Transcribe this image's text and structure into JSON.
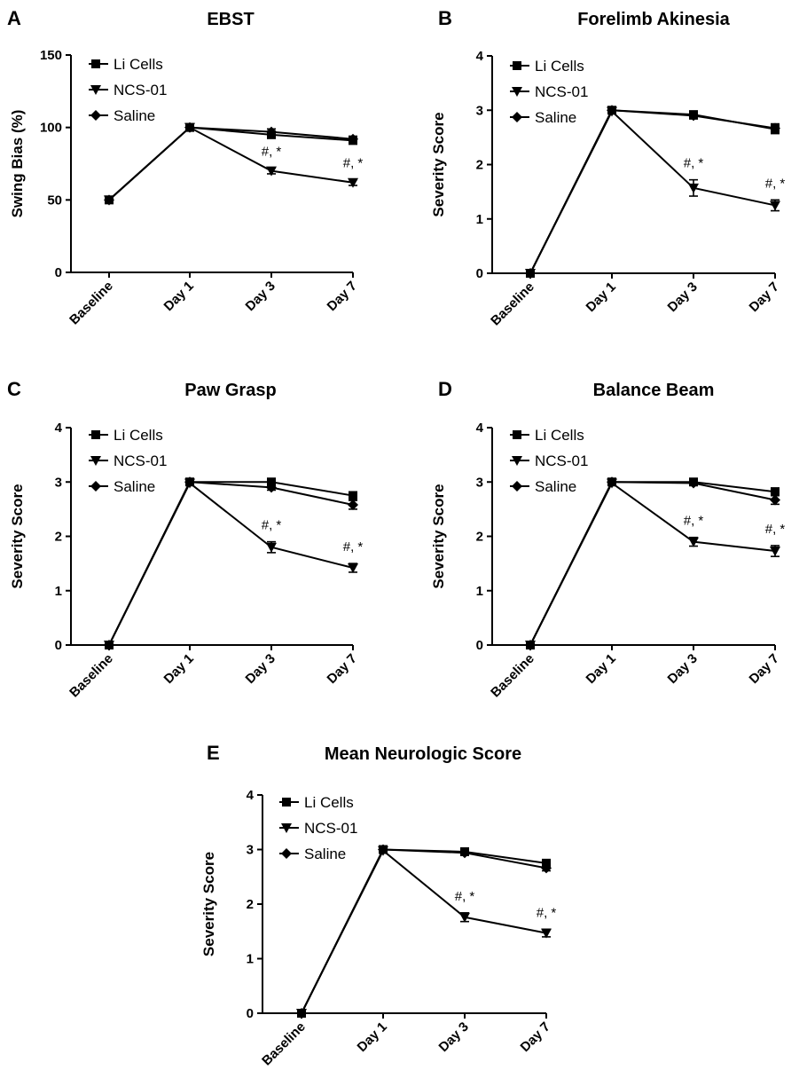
{
  "chart_data": [
    {
      "panel": "A",
      "type": "line",
      "title": "EBST",
      "xlabel": "",
      "ylabel": "Swing Bias (%)",
      "ylim": [
        0,
        150
      ],
      "yticks": [
        0,
        50,
        100,
        150
      ],
      "categories": [
        "Baseline",
        "Day 1",
        "Day 3",
        "Day 7"
      ],
      "legend_position": "top-left",
      "grid": false,
      "series": [
        {
          "name": "Li Cells",
          "marker": "square",
          "values": [
            50,
            100,
            95,
            91
          ],
          "errors": [
            1,
            1,
            2,
            2
          ]
        },
        {
          "name": "NCS-01",
          "marker": "triangle-down",
          "values": [
            50,
            100,
            70,
            62
          ],
          "errors": [
            1,
            1,
            2,
            2
          ]
        },
        {
          "name": "Saline",
          "marker": "diamond",
          "values": [
            50,
            100,
            97,
            92
          ],
          "errors": [
            1,
            1,
            2,
            2
          ]
        }
      ],
      "annotations": [
        {
          "text": "#, *",
          "category": "Day 3"
        },
        {
          "text": "#, *",
          "category": "Day 7"
        }
      ]
    },
    {
      "panel": "B",
      "type": "line",
      "title": "Forelimb Akinesia",
      "xlabel": "",
      "ylabel": "Severity Score",
      "ylim": [
        0,
        4
      ],
      "yticks": [
        0,
        1,
        2,
        3,
        4
      ],
      "categories": [
        "Baseline",
        "Day 1",
        "Day 3",
        "Day 7"
      ],
      "legend_position": "top-left",
      "grid": false,
      "series": [
        {
          "name": "Li Cells",
          "marker": "square",
          "values": [
            0,
            3.0,
            2.92,
            2.65
          ],
          "errors": [
            0,
            0.03,
            0.06,
            0.08
          ]
        },
        {
          "name": "NCS-01",
          "marker": "triangle-down",
          "values": [
            0,
            2.98,
            1.57,
            1.25
          ],
          "errors": [
            0,
            0.03,
            0.15,
            0.1
          ]
        },
        {
          "name": "Saline",
          "marker": "diamond",
          "values": [
            0,
            3.0,
            2.9,
            2.67
          ],
          "errors": [
            0,
            0.03,
            0.06,
            0.08
          ]
        }
      ],
      "annotations": [
        {
          "text": "#, *",
          "category": "Day 3"
        },
        {
          "text": "#, *",
          "category": "Day 7"
        }
      ]
    },
    {
      "panel": "C",
      "type": "line",
      "title": "Paw Grasp",
      "xlabel": "",
      "ylabel": "Severity Score",
      "ylim": [
        0,
        4
      ],
      "yticks": [
        0,
        1,
        2,
        3,
        4
      ],
      "categories": [
        "Baseline",
        "Day 1",
        "Day 3",
        "Day 7"
      ],
      "legend_position": "top-left",
      "grid": false,
      "series": [
        {
          "name": "Li Cells",
          "marker": "square",
          "values": [
            0,
            3.0,
            3.0,
            2.75
          ],
          "errors": [
            0,
            0.03,
            0.05,
            0.07
          ]
        },
        {
          "name": "NCS-01",
          "marker": "triangle-down",
          "values": [
            0,
            2.98,
            1.8,
            1.42
          ],
          "errors": [
            0,
            0.03,
            0.1,
            0.08
          ]
        },
        {
          "name": "Saline",
          "marker": "diamond",
          "values": [
            0,
            3.0,
            2.9,
            2.58
          ],
          "errors": [
            0,
            0.03,
            0.05,
            0.08
          ]
        }
      ],
      "annotations": [
        {
          "text": "#, *",
          "category": "Day 3"
        },
        {
          "text": "#, *",
          "category": "Day 7"
        }
      ]
    },
    {
      "panel": "D",
      "type": "line",
      "title": "Balance Beam",
      "xlabel": "",
      "ylabel": "Severity Score",
      "ylim": [
        0,
        4
      ],
      "yticks": [
        0,
        1,
        2,
        3,
        4
      ],
      "categories": [
        "Baseline",
        "Day 1",
        "Day 3",
        "Day 7"
      ],
      "legend_position": "top-left",
      "grid": false,
      "series": [
        {
          "name": "Li Cells",
          "marker": "square",
          "values": [
            0,
            3.0,
            3.0,
            2.82
          ],
          "errors": [
            0,
            0.03,
            0.04,
            0.07
          ]
        },
        {
          "name": "NCS-01",
          "marker": "triangle-down",
          "values": [
            0,
            2.98,
            1.9,
            1.73
          ],
          "errors": [
            0,
            0.03,
            0.08,
            0.1
          ]
        },
        {
          "name": "Saline",
          "marker": "diamond",
          "values": [
            0,
            3.0,
            2.98,
            2.67
          ],
          "errors": [
            0,
            0.03,
            0.04,
            0.08
          ]
        }
      ],
      "annotations": [
        {
          "text": "#, *",
          "category": "Day 3"
        },
        {
          "text": "#, *",
          "category": "Day 7"
        }
      ]
    },
    {
      "panel": "E",
      "type": "line",
      "title": "Mean Neurologic Score",
      "xlabel": "",
      "ylabel": "Severity Score",
      "ylim": [
        0,
        4
      ],
      "yticks": [
        0,
        1,
        2,
        3,
        4
      ],
      "categories": [
        "Baseline",
        "Day 1",
        "Day 3",
        "Day 7"
      ],
      "legend_position": "top-left",
      "grid": false,
      "series": [
        {
          "name": "Li Cells",
          "marker": "square",
          "values": [
            0,
            3.0,
            2.96,
            2.75
          ],
          "errors": [
            0,
            0.03,
            0.04,
            0.05
          ]
        },
        {
          "name": "NCS-01",
          "marker": "triangle-down",
          "values": [
            0,
            2.98,
            1.76,
            1.47
          ],
          "errors": [
            0,
            0.03,
            0.08,
            0.07
          ]
        },
        {
          "name": "Saline",
          "marker": "diamond",
          "values": [
            0,
            3.0,
            2.94,
            2.66
          ],
          "errors": [
            0,
            0.03,
            0.04,
            0.05
          ]
        }
      ],
      "annotations": [
        {
          "text": "#, *",
          "category": "Day 3"
        },
        {
          "text": "#, *",
          "category": "Day 7"
        }
      ]
    }
  ]
}
